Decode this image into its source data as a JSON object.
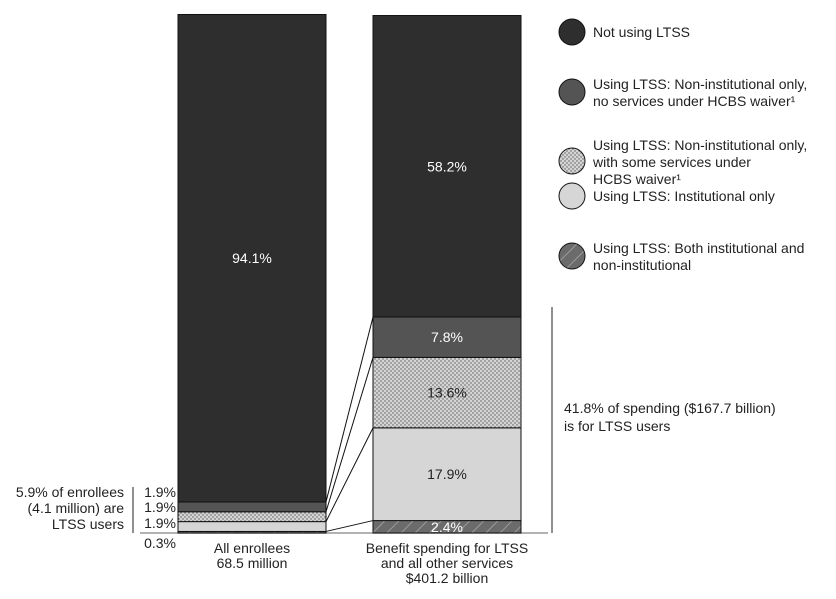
{
  "chart_data": {
    "type": "bar",
    "stacked": true,
    "title": "",
    "xlabel": "",
    "ylabel": "",
    "ylim": [
      0,
      100
    ],
    "grid": false,
    "legend_placement": "right",
    "categories": [
      {
        "lines": [
          "All enrollees",
          "68.5 million"
        ]
      },
      {
        "lines": [
          "Benefit spending for LTSS",
          "and all other services",
          "$401.2 billion"
        ]
      }
    ],
    "series": [
      {
        "name": "Using LTSS: Both institutional and non-institutional",
        "legend_lines": [
          "Using LTSS: Both institutional and",
          "non-institutional"
        ],
        "fill": "hatch",
        "color": "#6b6b6b",
        "values": [
          0.3,
          2.4
        ],
        "labels": [
          "0.3%",
          "2.4%"
        ]
      },
      {
        "name": "Using LTSS: Institutional only",
        "legend_lines": [
          "Using LTSS: Institutional only"
        ],
        "fill": "solid",
        "color": "#d6d6d6",
        "values": [
          1.9,
          17.9
        ],
        "labels": [
          "1.9%",
          "17.9%"
        ]
      },
      {
        "name": "Using LTSS: Non-institutional only, with some services under HCBS waiver¹",
        "legend_lines": [
          "Using LTSS: Non-institutional only,",
          "with some services under",
          "HCBS waiver¹"
        ],
        "fill": "dots",
        "color": "#d0d0d0",
        "values": [
          1.9,
          13.6
        ],
        "labels": [
          "1.9%",
          "13.6%"
        ]
      },
      {
        "name": "Using LTSS: Non-institutional only, no services under HCBS waiver¹",
        "legend_lines": [
          "Using LTSS: Non-institutional only,",
          "no services under HCBS waiver¹"
        ],
        "fill": "solid",
        "color": "#545454",
        "values": [
          1.9,
          7.8
        ],
        "labels": [
          "1.9%",
          "7.8%"
        ]
      },
      {
        "name": "Not using LTSS",
        "legend_lines": [
          "Not using LTSS"
        ],
        "fill": "solid",
        "color": "#2e2e2e",
        "values": [
          94.1,
          58.2
        ],
        "labels": [
          "94.1%",
          "58.2%"
        ]
      }
    ],
    "annotations": {
      "enrollees": [
        "5.9% of enrollees",
        "(4.1 million) are",
        "LTSS users"
      ],
      "spending": [
        "41.8% of spending ($167.7 billion)",
        "is for LTSS users"
      ]
    }
  }
}
